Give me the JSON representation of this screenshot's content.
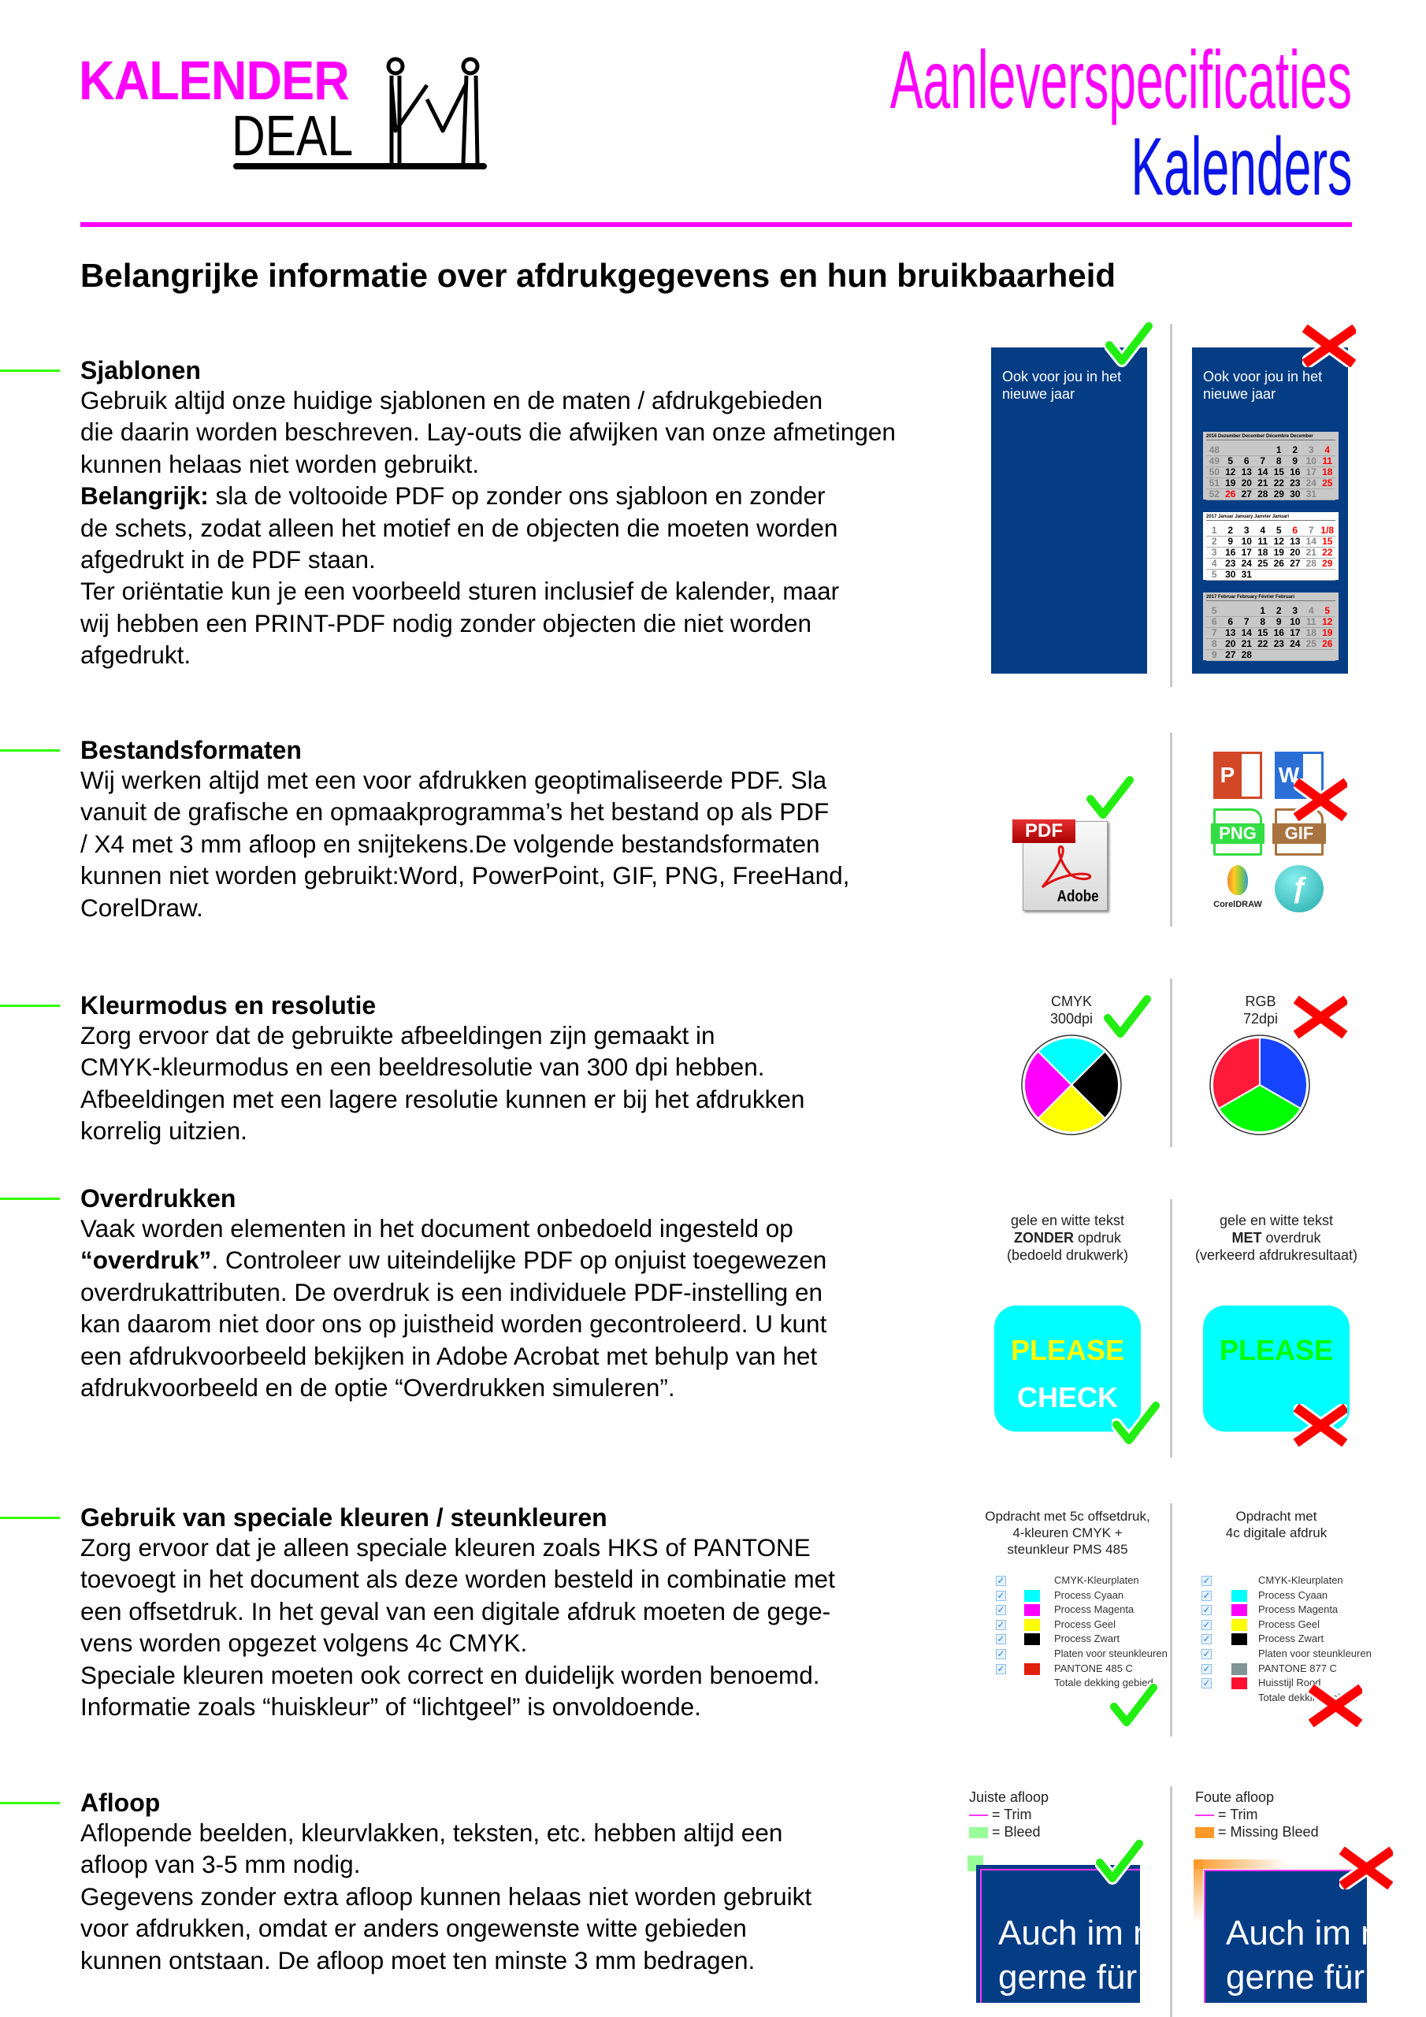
{
  "logo": {
    "line1": "KALENDER",
    "line2": "DEAL",
    "colors": {
      "accent": "#ff00ff",
      "ink": "#000000"
    }
  },
  "title": {
    "line1": "Aanleverspecificaties",
    "line2": "Kalenders",
    "colors": {
      "line1": "#ff00ff",
      "line2": "#0a14e6"
    }
  },
  "heading": "Belangrijke informatie over afdrukgegevens en hun bruikbaarheid",
  "sections": [
    {
      "title": "Sjablonen",
      "lines": [
        "Gebruik altijd onze huidige sjablonen en de maten / afdrukgebieden",
        "die daarin worden beschreven. Lay-outs die afwijken van onze afmetingen",
        "kunnen helaas niet worden gebruikt.",
        {
          "b": "Belangrijk:",
          "t": " sla de voltooide PDF op zonder ons sjabloon en zonder"
        },
        "de schets, zodat alleen het motief en de objecten die moeten worden",
        "afgedrukt in de PDF staan.",
        "Ter oriëntatie kun je een voorbeeld sturen inclusief de kalender, maar",
        "wij hebben een PRINT-PDF nodig zonder objecten die niet worden",
        "afgedrukt."
      ]
    },
    {
      "title": "Bestandsformaten",
      "lines": [
        "Wij werken altijd met een voor afdrukken geoptimaliseerde PDF. Sla",
        "vanuit de grafische en opmaakprogramma’s het bestand op als PDF",
        "/ X4 met 3 mm afloop en snijtekens.De volgende bestandsformaten",
        "kunnen niet worden gebruikt:Word, PowerPoint, GIF, PNG, FreeHand,",
        "CorelDraw."
      ]
    },
    {
      "title": "Kleurmodus en resolutie",
      "lines": [
        "Zorg ervoor dat de gebruikte afbeeldingen zijn gemaakt in",
        "CMYK-kleurmodus en een beeldresolutie van 300 dpi hebben.",
        "Afbeeldingen met een lagere resolutie kunnen er bij het afdrukken",
        "korrelig uitzien."
      ]
    },
    {
      "title": "Overdrukken",
      "lines": [
        "Vaak worden elementen in het document onbedoeld ingesteld op",
        {
          "b": "“overdruk”",
          "t": ". Controleer uw uiteindelijke PDF op onjuist toegewezen"
        },
        "overdrukattributen. De overdruk is een individuele PDF-instelling en",
        "kan daarom niet door ons op juistheid worden gecontroleerd. U kunt",
        "een afdrukvoorbeeld bekijken in Adobe Acrobat met behulp van het",
        "afdrukvoorbeeld en de optie “Overdrukken simuleren”."
      ]
    },
    {
      "title": "Gebruik van speciale kleuren / steunkleuren",
      "lines": [
        "Zorg ervoor dat je alleen speciale kleuren zoals HKS of PANTONE",
        "toevoegt in het document als deze worden besteld in combinatie met",
        "een offsetdruk. In het geval van een digitale afdruk moeten de gege-",
        "vens worden opgezet volgens 4c CMYK.",
        "Speciale kleuren moeten ook correct en duidelijk worden benoemd.",
        "Informatie zoals “huiskleur” of “lichtgeel” is onvoldoende."
      ]
    },
    {
      "title": "Afloop",
      "lines": [
        "Aflopende beelden, kleurvlakken, teksten, etc. hebben altijd een",
        "afloop van 3-5 mm nodig.",
        "Gegevens zonder extra afloop kunnen helaas niet worden gebruikt",
        "voor afdrukken, omdat er anders ongewenste witte gebieden",
        "kunnen ontstaan. De afloop moet ten minste 3 mm bedragen."
      ]
    }
  ],
  "sjablonen_example": {
    "poster_text_line1": "Ook voor jou in het",
    "poster_text_line2": "nieuwe jaar",
    "calendars": [
      {
        "header": "2016   Dezember  December  Décembre  December",
        "bg": "#c8c8c8",
        "holidays": [
          26
        ],
        "rows": [
          [
            "48",
            "",
            "",
            "",
            "1",
            "2",
            "3",
            "4"
          ],
          [
            "49",
            "5",
            "6",
            "7",
            "8",
            "9",
            "10",
            "11"
          ],
          [
            "50",
            "12",
            "13",
            "14",
            "15",
            "16",
            "17",
            "18"
          ],
          [
            "51",
            "19",
            "20",
            "21",
            "22",
            "23",
            "24",
            "25"
          ],
          [
            "52",
            "26",
            "27",
            "28",
            "29",
            "30",
            "31",
            ""
          ]
        ]
      },
      {
        "header": "2017   Januar  January  Janvier  Januari",
        "bg": "#ffffff",
        "holidays": [
          6
        ],
        "rows": [
          [
            "1",
            "2",
            "3",
            "4",
            "5",
            "6",
            "7",
            "1/8"
          ],
          [
            "2",
            "9",
            "10",
            "11",
            "12",
            "13",
            "14",
            "15"
          ],
          [
            "3",
            "16",
            "17",
            "18",
            "19",
            "20",
            "21",
            "22"
          ],
          [
            "4",
            "23",
            "24",
            "25",
            "26",
            "27",
            "28",
            "29"
          ],
          [
            "5",
            "30",
            "31",
            "",
            "",
            "",
            "",
            ""
          ]
        ]
      },
      {
        "header": "2017   Februar  February  Février  Februari",
        "bg": "#c8c8c8",
        "holidays": [],
        "rows": [
          [
            "5",
            "",
            "",
            "1",
            "2",
            "3",
            "4",
            "5"
          ],
          [
            "6",
            "6",
            "7",
            "8",
            "9",
            "10",
            "11",
            "12"
          ],
          [
            "7",
            "13",
            "14",
            "15",
            "16",
            "17",
            "18",
            "19"
          ],
          [
            "8",
            "20",
            "21",
            "22",
            "23",
            "24",
            "25",
            "26"
          ],
          [
            "9",
            "27",
            "28",
            "",
            "",
            "",
            "",
            ""
          ]
        ]
      }
    ]
  },
  "formats": {
    "good": {
      "badge": "PDF",
      "brand": "Adobe"
    },
    "bad": [
      {
        "label": "P",
        "icon": "powerpoint-icon",
        "color": "#d24726"
      },
      {
        "label": "W",
        "icon": "word-icon",
        "color": "#2b6fd6"
      },
      {
        "label": "PNG",
        "icon": "png-file-icon",
        "color": "#33dd44"
      },
      {
        "label": "GIF",
        "icon": "gif-file-icon",
        "color": "#a8733f"
      },
      {
        "label": "CorelDRAW",
        "icon": "coreldraw-icon",
        "color": "#f4a300"
      },
      {
        "label": "ƒ",
        "icon": "freehand-icon",
        "color": "#3cc4c0"
      }
    ]
  },
  "colormode": {
    "good": {
      "line1": "CMYK",
      "line2": "300dpi",
      "colors": [
        "#00ffff",
        "#000000",
        "#ffff00",
        "#ff00ff"
      ]
    },
    "bad": {
      "line1": "RGB",
      "line2": "72dpi",
      "colors": [
        "#1744ff",
        "#00ff00",
        "#ff1a3a"
      ]
    }
  },
  "overprint": {
    "good": {
      "line1": "gele en witte tekst",
      "line2_bold": "ZONDER",
      "line2_rest": " opdruk",
      "line3": "(bedoeld drukwerk)",
      "word1": "PLEASE",
      "word2": "CHECK",
      "word1_color": "#ffff00",
      "word2_color": "#ffffff"
    },
    "bad": {
      "line1": "gele en witte tekst",
      "line2_bold": "MET",
      "line2_rest": " overdruk",
      "line3": "(verkeerd afdrukresultaat)",
      "word1": "PLEASE",
      "word1_color": "#00ff00"
    },
    "box_color": "#00ffff"
  },
  "spotcolors": {
    "good": {
      "title_lines": [
        "Opdracht met 5c offsetdruk,",
        "4-kleuren CMYK +",
        "steunkleur PMS 485"
      ],
      "rows": [
        {
          "check": true,
          "swatch": null,
          "label": "CMYK-Kleurplaten"
        },
        {
          "check": true,
          "swatch": "#00ffff",
          "label": "Process Cyaan"
        },
        {
          "check": true,
          "swatch": "#ff00ff",
          "label": "Process Magenta"
        },
        {
          "check": true,
          "swatch": "#ffff00",
          "label": "Process Geel"
        },
        {
          "check": true,
          "swatch": "#000000",
          "label": "Process Zwart"
        },
        {
          "check": true,
          "swatch": null,
          "label": "Platen voor steunkleuren"
        },
        {
          "check": true,
          "swatch": "#e0200c",
          "label": "PANTONE 485 C"
        },
        {
          "check": false,
          "swatch": null,
          "label": "Totale dekking gebied"
        }
      ]
    },
    "bad": {
      "title_lines": [
        "Opdracht met",
        "4c digitale afdruk"
      ],
      "rows": [
        {
          "check": true,
          "swatch": null,
          "label": "CMYK-Kleurplaten"
        },
        {
          "check": true,
          "swatch": "#00ffff",
          "label": "Process Cyaan"
        },
        {
          "check": true,
          "swatch": "#ff00ff",
          "label": "Process Magenta"
        },
        {
          "check": true,
          "swatch": "#ffff00",
          "label": "Process Geel"
        },
        {
          "check": true,
          "swatch": "#000000",
          "label": "Process Zwart"
        },
        {
          "check": true,
          "swatch": null,
          "label": "Platen voor steunkleuren"
        },
        {
          "check": true,
          "swatch": "#7f9494",
          "label": "PANTONE 877 C"
        },
        {
          "check": true,
          "swatch": "#ff1030",
          "label": "Huisstijl Rood"
        },
        {
          "check": false,
          "swatch": null,
          "label": "Totale dekking gebied"
        }
      ]
    }
  },
  "bleed": {
    "good": {
      "title": "Juiste afloop",
      "legend1": "= Trim",
      "legend2": "= Bleed",
      "legend1_color": "#ff33ff",
      "legend2_color": "#99ff99",
      "text1": "Auch im n",
      "text2": "gerne für"
    },
    "bad": {
      "title": "Foute afloop",
      "legend1": "= Trim",
      "legend2": "= Missing Bleed",
      "legend1_color": "#ff33ff",
      "legend2_color": "#ff9a2a",
      "text1": "Auch im n",
      "text2": "gerne für"
    }
  },
  "status_colors": {
    "ok": "#22ee11",
    "bad": "#ff0000",
    "section_marker": "#33ff00",
    "poster_blue": "#053d85"
  }
}
